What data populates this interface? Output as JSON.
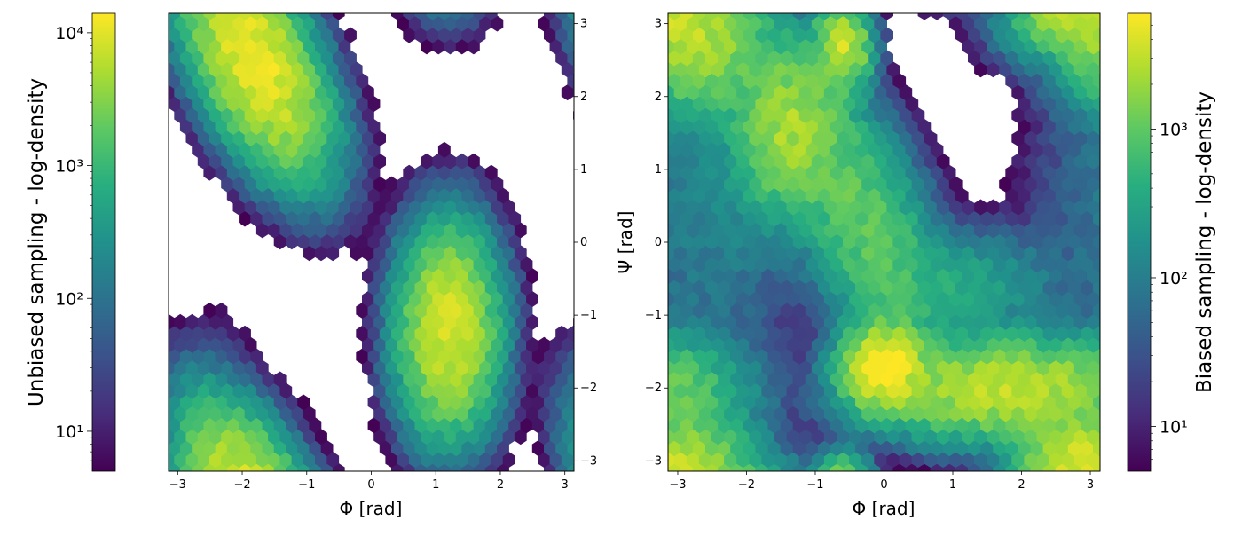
{
  "chart_data": [
    {
      "type": "heatmap",
      "subtype": "hexbin",
      "xlabel": "Φ [rad]",
      "ylabel": "",
      "xlim": [
        -3.14159,
        3.14159
      ],
      "ylim": [
        -3.14159,
        3.14159
      ],
      "xticks": [
        -3,
        -2,
        -1,
        0,
        1,
        2,
        3
      ],
      "xtick_labels": [
        "−3",
        "−2",
        "−1",
        "0",
        "1",
        "2",
        "3"
      ],
      "yticks": [
        -3,
        -2,
        -1,
        0,
        1,
        2,
        3
      ],
      "ytick_labels": [
        "−3",
        "−2",
        "−1",
        "0",
        "1",
        "2",
        "3"
      ],
      "ytick_side": "right",
      "colormap": "viridis",
      "color_scale": "log",
      "colorbar": {
        "label": "Unbiased sampling - log-density",
        "side": "left",
        "range": [
          5,
          14000
        ],
        "ticks": [
          10,
          100,
          1000,
          10000
        ],
        "tick_labels": [
          "10¹",
          "10²",
          "10³",
          "10⁴"
        ]
      },
      "density_components": [
        {
          "phi": -1.8,
          "psi": 2.5,
          "sx": 0.5,
          "sy": 0.7,
          "peak": 12000,
          "rho": -0.55
        },
        {
          "phi": 1.2,
          "psi": -1.2,
          "sx": 0.35,
          "sy": 0.65,
          "peak": 9000,
          "rho": 0.0
        },
        {
          "phi": -2.3,
          "psi": -1.3,
          "sx": 0.3,
          "sy": 0.3,
          "peak": 10,
          "rho": 0.0
        },
        {
          "phi": -2.5,
          "psi": -3.0,
          "sx": 0.3,
          "sy": 0.15,
          "peak": 30,
          "rho": 0.0
        }
      ]
    },
    {
      "type": "heatmap",
      "subtype": "hexbin",
      "xlabel": "Φ [rad]",
      "ylabel": "Ψ [rad]",
      "xlim": [
        -3.14159,
        3.14159
      ],
      "ylim": [
        -3.14159,
        3.14159
      ],
      "xticks": [
        -3,
        -2,
        -1,
        0,
        1,
        2,
        3
      ],
      "xtick_labels": [
        "−3",
        "−2",
        "−1",
        "0",
        "1",
        "2",
        "3"
      ],
      "yticks": [
        -3,
        -2,
        -1,
        0,
        1,
        2,
        3
      ],
      "ytick_labels": [
        "−3",
        "−2",
        "−1",
        "0",
        "1",
        "2",
        "3"
      ],
      "ytick_side": "left",
      "colormap": "viridis",
      "color_scale": "log",
      "colorbar": {
        "label": "Biased sampling - log-density",
        "side": "right",
        "range": [
          5,
          6000
        ],
        "ticks": [
          10,
          100,
          1000
        ],
        "tick_labels": [
          "10¹",
          "10²",
          "10³"
        ]
      },
      "density_components": [
        {
          "phi": -2.7,
          "psi": 2.8,
          "sx": 0.5,
          "sy": 0.5,
          "peak": 2500,
          "rho": 0.0
        },
        {
          "phi": -1.4,
          "psi": 1.6,
          "sx": 0.4,
          "sy": 0.6,
          "peak": 2200,
          "rho": 0.0
        },
        {
          "phi": -0.6,
          "psi": 2.7,
          "sx": 0.2,
          "sy": 0.3,
          "peak": 3500,
          "rho": 0.0
        },
        {
          "phi": 0.0,
          "psi": -1.7,
          "sx": 0.3,
          "sy": 0.3,
          "peak": 6000,
          "rho": 0.0
        },
        {
          "phi": 1.8,
          "psi": -2.0,
          "sx": 1.0,
          "sy": 0.35,
          "peak": 3000,
          "rho": 0.0
        },
        {
          "phi": 2.8,
          "psi": -3.0,
          "sx": 0.4,
          "sy": 0.3,
          "peak": 3000,
          "rho": 0.0
        },
        {
          "phi": -0.3,
          "psi": 0.3,
          "sx": 0.6,
          "sy": 1.0,
          "peak": 1000,
          "rho": -0.6
        },
        {
          "phi": 1.2,
          "psi": -0.6,
          "sx": 0.7,
          "sy": 0.4,
          "peak": 300,
          "rho": 0.0
        },
        {
          "phi": -2.8,
          "psi": -2.5,
          "sx": 0.45,
          "sy": 0.7,
          "peak": 300,
          "rho": 0.0
        },
        {
          "phi": 2.6,
          "psi": 3.0,
          "sx": 0.5,
          "sy": 0.3,
          "peak": 600,
          "rho": 0.0
        },
        {
          "phi": -2.5,
          "psi": 0.5,
          "sx": 0.8,
          "sy": 1.2,
          "peak": 120,
          "rho": 0.0
        }
      ]
    }
  ]
}
